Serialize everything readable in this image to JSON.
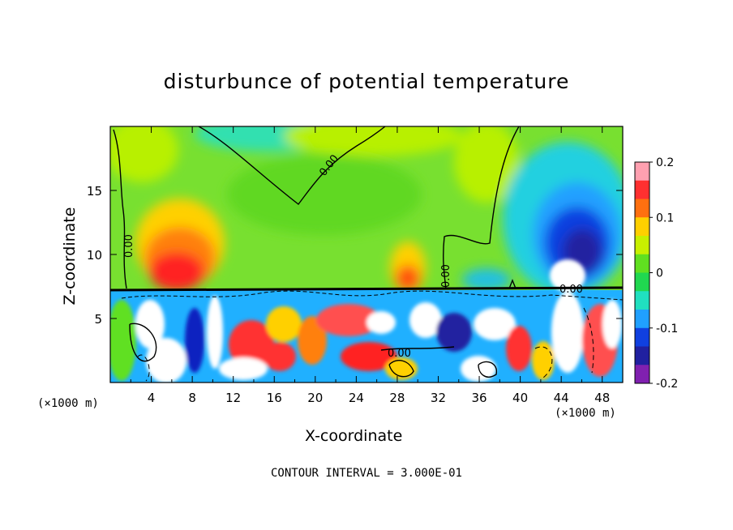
{
  "title": "disturbunce of potential temperature",
  "footer": "CONTOUR INTERVAL = 3.000E-01",
  "chart_data": {
    "type": "heatmap",
    "title": "disturbunce of potential temperature",
    "xlabel": "X-coordinate",
    "ylabel": "Z-coordinate",
    "x_unit_label_left": "(×1000 m)",
    "x_unit_label_right": "(×1000 m)",
    "xlim": [
      0,
      50
    ],
    "ylim": [
      0,
      20
    ],
    "x_ticks": [
      "4",
      "8",
      "12",
      "16",
      "20",
      "24",
      "28",
      "32",
      "36",
      "40",
      "44",
      "48"
    ],
    "y_ticks": [
      "5",
      "10",
      "15"
    ],
    "colorbar": {
      "range": [
        -0.2,
        0.2
      ],
      "tick_labels": [
        "0.2",
        "0.1",
        "0",
        "-0.1",
        "-0.2"
      ],
      "colors": [
        "#ffa0b0",
        "#ff3030",
        "#ff7010",
        "#ffd000",
        "#c8f000",
        "#60e020",
        "#20d850",
        "#20e0c0",
        "#20a0ff",
        "#1040e0",
        "#2020a0",
        "#8020b0"
      ]
    },
    "contour_label": "0.00",
    "contour_interval": "3.000E-01",
    "features": [
      {
        "x": 7,
        "z": 10.5,
        "value": 0.17
      },
      {
        "x": 29,
        "z": 9.0,
        "value": 0.14
      },
      {
        "x": 44,
        "z": 11.5,
        "value": -0.19
      },
      {
        "x": 19,
        "z": 18.5,
        "value": 0.0
      },
      {
        "x": 38,
        "z": 16.0,
        "value": 0.03
      }
    ]
  }
}
